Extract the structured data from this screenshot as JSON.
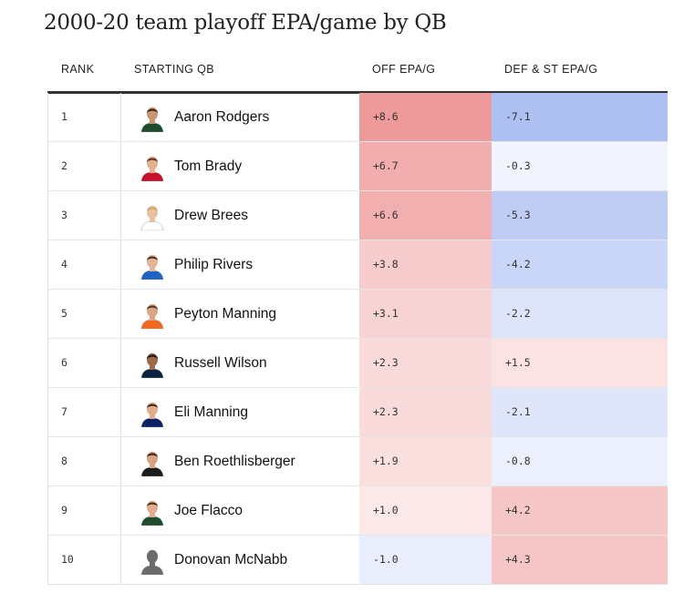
{
  "title": "2000-20 team playoff EPA/game by QB",
  "columns": {
    "rank": "RANK",
    "qb": "STARTING QB",
    "off": "OFF EPA/G",
    "def": "DEF & ST EPA/G"
  },
  "colors": {
    "positive_max": "#ef9a9a",
    "negative_max": "#9fb4f0"
  },
  "rows": [
    {
      "rank": "1",
      "qb": "Aaron Rodgers",
      "off": "+8.6",
      "def": "-7.1",
      "jersey": "#1e4d2b",
      "skin": "#c8966e",
      "hair": "#3a2a1e"
    },
    {
      "rank": "2",
      "qb": "Tom Brady",
      "off": "+6.7",
      "def": "-0.3",
      "jersey": "#c8102e",
      "skin": "#e2b08f",
      "hair": "#5a3a22"
    },
    {
      "rank": "3",
      "qb": "Drew Brees",
      "off": "+6.6",
      "def": "-5.3",
      "jersey": "#ffffff",
      "skin": "#e8c0a0",
      "hair": "#cfa76e"
    },
    {
      "rank": "4",
      "qb": "Philip Rivers",
      "off": "+3.8",
      "def": "-4.2",
      "jersey": "#1e63c4",
      "skin": "#e3b495",
      "hair": "#4a3322"
    },
    {
      "rank": "5",
      "qb": "Peyton Manning",
      "off": "+3.1",
      "def": "-2.2",
      "jersey": "#f26a21",
      "skin": "#dba588",
      "hair": "#5a3a22"
    },
    {
      "rank": "6",
      "qb": "Russell Wilson",
      "off": "+2.3",
      "def": "+1.5",
      "jersey": "#0b2341",
      "skin": "#9b6a4a",
      "hair": "#1e1410"
    },
    {
      "rank": "7",
      "qb": "Eli Manning",
      "off": "+2.3",
      "def": "-2.1",
      "jersey": "#0b2265",
      "skin": "#e0ac8c",
      "hair": "#3a2a1e"
    },
    {
      "rank": "8",
      "qb": "Ben Roethlisberger",
      "off": "+1.9",
      "def": "-0.8",
      "jersey": "#1b1b1b",
      "skin": "#d8a283",
      "hair": "#3a2a1e"
    },
    {
      "rank": "9",
      "qb": "Joe Flacco",
      "off": "+1.0",
      "def": "+4.2",
      "jersey": "#1e4d2b",
      "skin": "#e0ae8e",
      "hair": "#4a3322"
    },
    {
      "rank": "10",
      "qb": "Donovan McNabb",
      "off": "-1.0",
      "def": "+4.3",
      "jersey": "#6b6b6b",
      "skin": "#6b6b6b",
      "hair": "#6b6b6b"
    }
  ],
  "chart_data": {
    "type": "table",
    "title": "2000-20 team playoff EPA/game by QB",
    "columns": [
      "RANK",
      "STARTING QB",
      "OFF EPA/G",
      "DEF & ST EPA/G"
    ],
    "rows": [
      [
        1,
        "Aaron Rodgers",
        8.6,
        -7.1
      ],
      [
        2,
        "Tom Brady",
        6.7,
        -0.3
      ],
      [
        3,
        "Drew Brees",
        6.6,
        -5.3
      ],
      [
        4,
        "Philip Rivers",
        3.8,
        -4.2
      ],
      [
        5,
        "Peyton Manning",
        3.1,
        -2.2
      ],
      [
        6,
        "Russell Wilson",
        2.3,
        1.5
      ],
      [
        7,
        "Eli Manning",
        2.3,
        -2.1
      ],
      [
        8,
        "Ben Roethlisberger",
        1.9,
        -0.8
      ],
      [
        9,
        "Joe Flacco",
        1.0,
        4.2
      ],
      [
        10,
        "Donovan McNabb",
        -1.0,
        4.3
      ]
    ]
  }
}
